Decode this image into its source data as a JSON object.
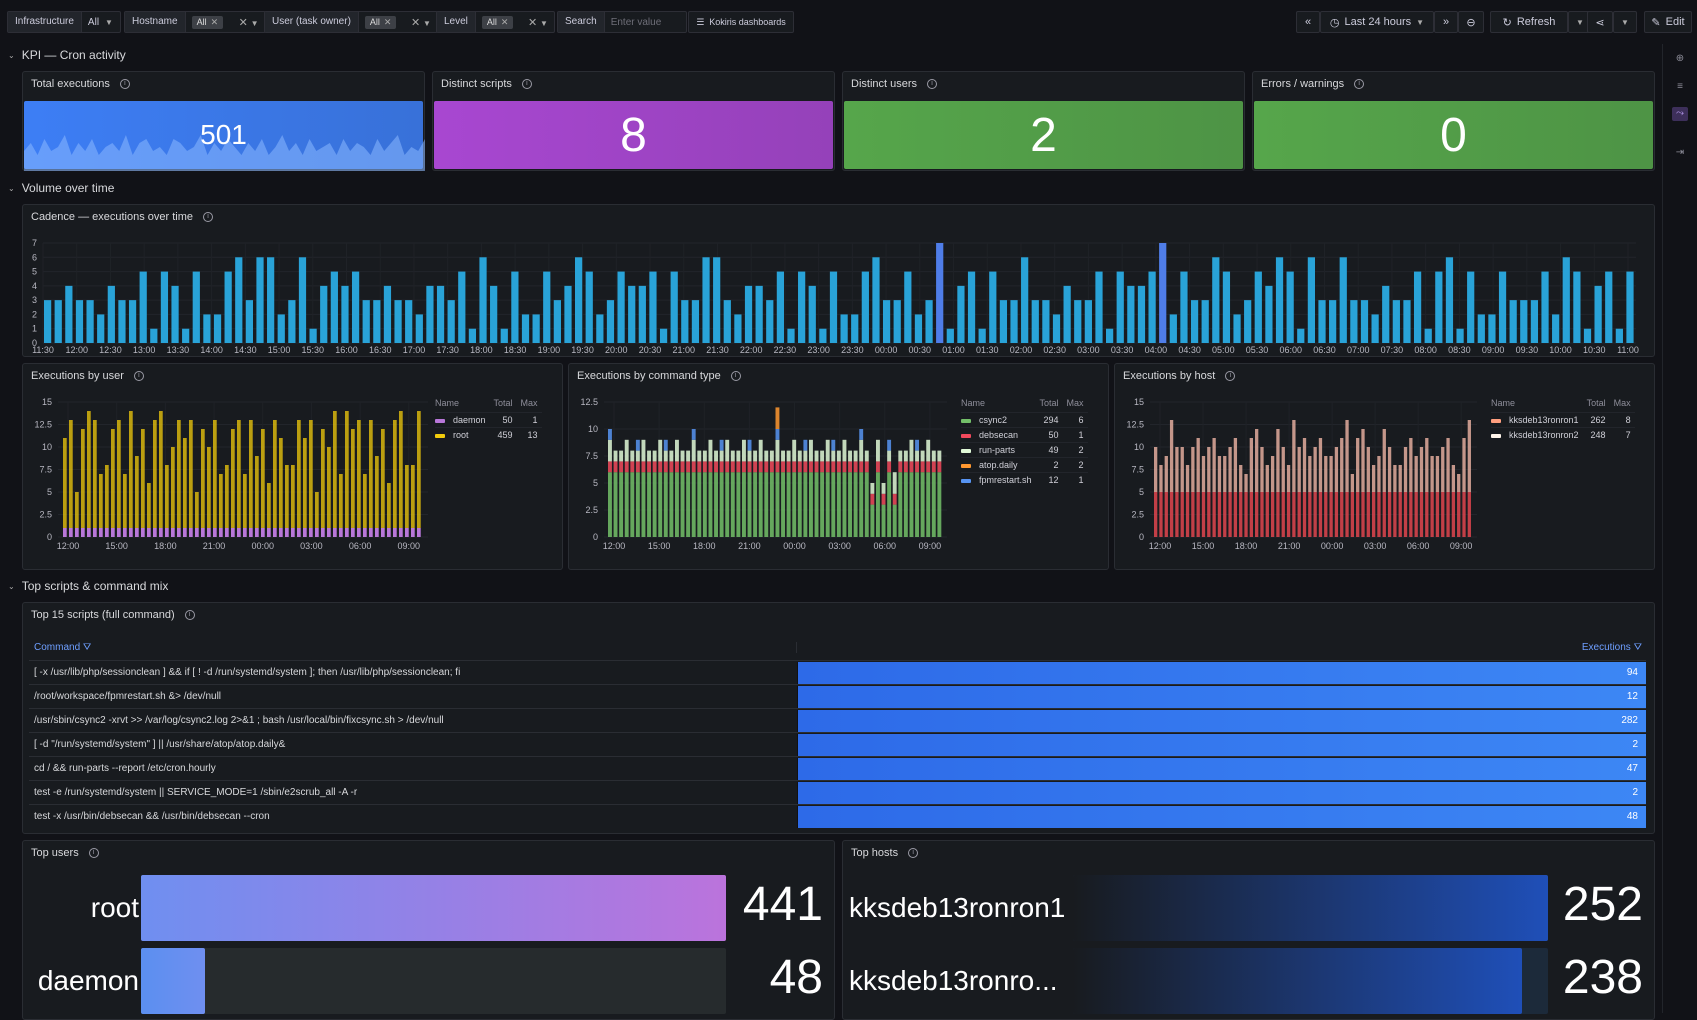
{
  "variables": [
    {
      "label": "Infrastructure",
      "value": "All",
      "kind": "select"
    },
    {
      "label": "Hostname",
      "value": "All",
      "kind": "chip"
    },
    {
      "label": "User (task owner)",
      "value": "All",
      "kind": "chip"
    },
    {
      "label": "Level",
      "value": "All",
      "kind": "chip"
    },
    {
      "label": "Search",
      "placeholder": "Enter value",
      "kind": "input"
    }
  ],
  "dash_link": "Kokiris dashboards",
  "time": {
    "range": "Last 24 hours",
    "refresh": "Refresh",
    "edit": "Edit"
  },
  "sections": {
    "kpi": "KPI — Cron activity",
    "volume": "Volume over time",
    "top": "Top scripts & command mix"
  },
  "stats": [
    {
      "title": "Total executions",
      "value": "501",
      "color": "#3d7ef5",
      "sparkline": [
        3,
        5,
        2,
        6,
        3,
        4,
        7,
        2,
        5,
        3,
        6,
        2,
        4,
        5,
        3,
        7,
        2,
        5,
        6,
        3,
        4,
        2,
        6,
        5,
        3,
        4,
        7,
        2,
        5,
        3,
        6,
        4,
        2,
        5,
        3,
        6,
        2,
        4,
        7,
        3,
        5,
        2,
        6,
        3,
        4,
        5,
        2,
        6,
        3,
        5,
        4,
        2,
        6,
        3,
        5,
        7,
        2,
        4,
        3,
        6
      ]
    },
    {
      "title": "Distinct scripts",
      "value": "8",
      "color": "#a847d1"
    },
    {
      "title": "Distinct users",
      "value": "2",
      "color": "#56a64b"
    },
    {
      "title": "Errors / warnings",
      "value": "0",
      "color": "#56a64b"
    }
  ],
  "panels": {
    "cadence": "Cadence — executions over time",
    "by_user": "Executions by user",
    "by_cmd": "Executions by command type",
    "by_host": "Executions by host",
    "top_scripts": "Top 15 scripts (full command)",
    "top_users": "Top users",
    "top_hosts": "Top hosts"
  },
  "chart_data": [
    {
      "type": "bar",
      "title": "Cadence — executions over time",
      "x_ticks": [
        "11:30",
        "12:00",
        "12:30",
        "13:00",
        "13:30",
        "14:00",
        "14:30",
        "15:00",
        "15:30",
        "16:00",
        "16:30",
        "17:00",
        "17:30",
        "18:00",
        "18:30",
        "19:00",
        "19:30",
        "20:00",
        "20:30",
        "21:00",
        "21:30",
        "22:00",
        "22:30",
        "23:00",
        "23:30",
        "00:00",
        "00:30",
        "01:00",
        "01:30",
        "02:00",
        "02:30",
        "03:00",
        "03:30",
        "04:00",
        "04:30",
        "05:00",
        "05:30",
        "06:00",
        "06:30",
        "07:00",
        "07:30",
        "08:00",
        "08:30",
        "09:00",
        "09:30",
        "10:00",
        "10:30",
        "11:00"
      ],
      "y_ticks": [
        "0",
        "1",
        "2",
        "3",
        "4",
        "5",
        "6",
        "7"
      ],
      "ylim": [
        0,
        7
      ],
      "color": "#29a3d8",
      "highlight": "#4f7de8"
    },
    {
      "type": "bar",
      "title": "Executions by user",
      "y_ticks": [
        "0",
        "2.5",
        "5",
        "7.5",
        "10",
        "12.5",
        "15"
      ],
      "ylim": [
        0,
        15
      ],
      "x_ticks": [
        "12:00",
        "15:00",
        "18:00",
        "21:00",
        "00:00",
        "03:00",
        "06:00",
        "09:00"
      ],
      "series": [
        {
          "name": "daemon",
          "color": "#b877d9",
          "total": "50",
          "max": "1"
        },
        {
          "name": "root",
          "color": "#f2cc0c",
          "total": "459",
          "max": "13"
        }
      ]
    },
    {
      "type": "bar",
      "title": "Executions by command type",
      "y_ticks": [
        "0",
        "2.5",
        "5",
        "7.5",
        "10",
        "12.5"
      ],
      "ylim": [
        0,
        12.5
      ],
      "x_ticks": [
        "12:00",
        "15:00",
        "18:00",
        "21:00",
        "00:00",
        "03:00",
        "06:00",
        "09:00"
      ],
      "series": [
        {
          "name": "csync2",
          "color": "#73bf69",
          "total": "294",
          "max": "6"
        },
        {
          "name": "debsecan",
          "color": "#f2495c",
          "total": "50",
          "max": "1"
        },
        {
          "name": "run-parts",
          "color": "#e0f9d7",
          "total": "49",
          "max": "2"
        },
        {
          "name": "atop.daily",
          "color": "#ff9830",
          "total": "2",
          "max": "2"
        },
        {
          "name": "fpmrestart.sh",
          "color": "#5794f2",
          "total": "12",
          "max": "1"
        }
      ]
    },
    {
      "type": "bar",
      "title": "Executions by host",
      "y_ticks": [
        "0",
        "2.5",
        "5",
        "7.5",
        "10",
        "12.5",
        "15"
      ],
      "ylim": [
        0,
        15
      ],
      "x_ticks": [
        "12:00",
        "15:00",
        "18:00",
        "21:00",
        "00:00",
        "03:00",
        "06:00",
        "09:00"
      ],
      "series": [
        {
          "name": "kksdeb13ronron1",
          "color": "#ff9f7f",
          "total": "262",
          "max": "8"
        },
        {
          "name": "kksdeb13ronron2",
          "color": "#fff5ea",
          "total": "248",
          "max": "7"
        }
      ]
    }
  ],
  "table": {
    "col_command": "Command",
    "col_exec": "Executions",
    "rows": [
      {
        "command": "[ -x /usr/lib/php/sessionclean ] && if [ ! -d /run/systemd/system ]; then /usr/lib/php/sessionclean; fi",
        "executions": "94"
      },
      {
        "command": "/root/workspace/fpmrestart.sh &> /dev/null",
        "executions": "12"
      },
      {
        "command": "/usr/sbin/csync2 -xrvt >> /var/log/csync2.log 2>&1 ; bash /usr/local/bin/fixcsync.sh > /dev/null",
        "executions": "282"
      },
      {
        "command": "[ -d \"/run/systemd/system\" ] || /usr/share/atop/atop.daily&",
        "executions": "2"
      },
      {
        "command": "cd / && run-parts --report /etc/cron.hourly",
        "executions": "47"
      },
      {
        "command": "test -e /run/systemd/system || SERVICE_MODE=1 /sbin/e2scrub_all -A -r",
        "executions": "2"
      },
      {
        "command": "test -x /usr/bin/debsecan && /usr/bin/debsecan --cron",
        "executions": "48"
      }
    ]
  },
  "top_users": [
    {
      "name": "root",
      "value": "441"
    },
    {
      "name": "daemon",
      "value": "48"
    }
  ],
  "top_hosts": [
    {
      "name": "kksdeb13ronron1",
      "value": "252"
    },
    {
      "name": "kksdeb13ronro...",
      "value": "238"
    }
  ]
}
